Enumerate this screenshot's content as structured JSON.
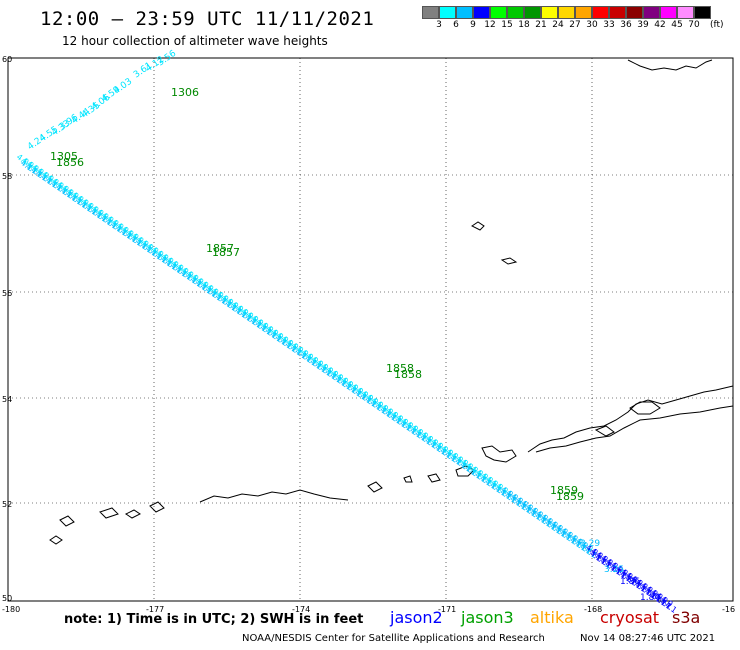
{
  "header": {
    "title": "12:00 – 23:59 UTC 11/11/2021",
    "subtitle": "12 hour collection of altimeter wave heights"
  },
  "legend": {
    "colors": [
      "#808080",
      "#00ffff",
      "#00bfff",
      "#0000ff",
      "#00ff00",
      "#00c800",
      "#009600",
      "#ffff00",
      "#ffd700",
      "#ffa500",
      "#ff0000",
      "#c80000",
      "#8b0000",
      "#800080",
      "#ff00ff",
      "#ff8cff",
      "#000000"
    ],
    "labels": [
      "3",
      "6",
      "9",
      "12",
      "15",
      "18",
      "21",
      "24",
      "27",
      "30",
      "33",
      "36",
      "39",
      "42",
      "45",
      "70"
    ],
    "unit": "(ft)"
  },
  "map": {
    "lat_labels": [
      "60",
      "58",
      "56",
      "54",
      "52",
      "50"
    ],
    "lon_labels": [
      "-180",
      "-177",
      "-174",
      "-171",
      "-168",
      "-16"
    ],
    "swh_labels": [
      "4.24",
      "4.55",
      "4.33",
      "3.96",
      "4.44",
      "4.35",
      "4.06",
      "4.59",
      "4.03",
      "3.61",
      "4.12",
      "3.56"
    ],
    "time_labels": [
      "1306",
      "1305",
      "1856",
      "1857",
      "1857",
      "1858",
      "1858",
      "1859",
      "1859"
    ],
    "south_labels": [
      "3.29",
      "3.25",
      "1.86",
      "1.84"
    ]
  },
  "note": "note:  1) Time is in UTC;  2) SWH is in feet",
  "satellites": [
    {
      "name": "jason2",
      "color": "#0000ff"
    },
    {
      "name": "jason3",
      "color": "#00a000"
    },
    {
      "name": "altika",
      "color": "#ffa500"
    },
    {
      "name": "cryosat",
      "color": "#c80000"
    },
    {
      "name": "s3a",
      "color": "#800000"
    }
  ],
  "footer": {
    "center": "NOAA/NESDIS Center for Satellite Applications and Research",
    "time": "Nov 14 08:27:46 UTC 2021"
  }
}
